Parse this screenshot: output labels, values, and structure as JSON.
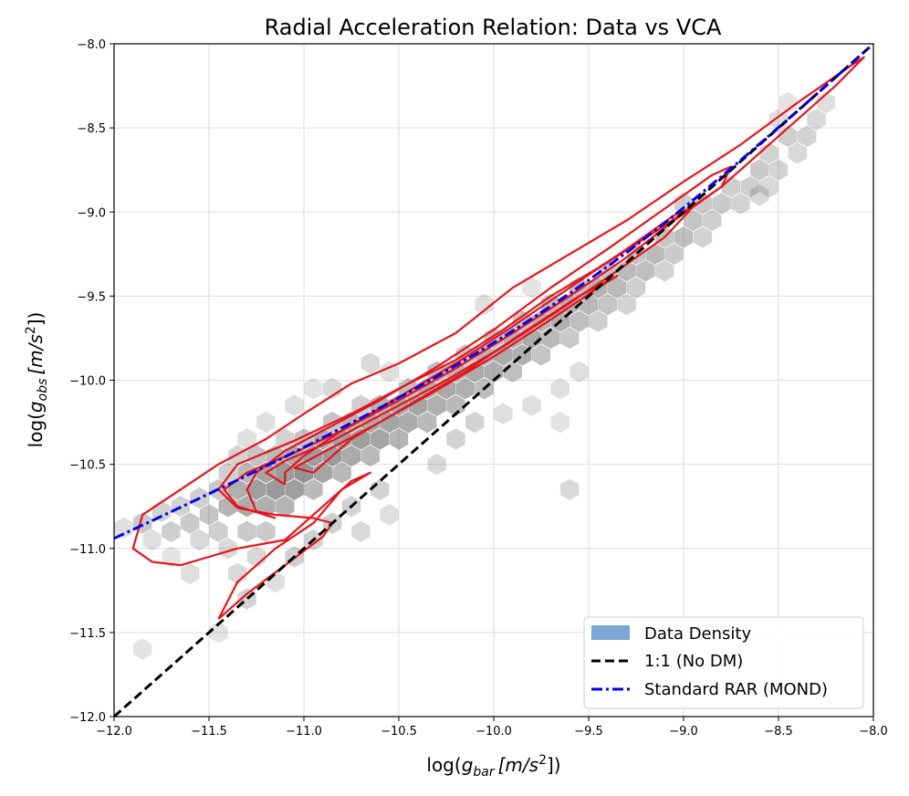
{
  "chart_data": {
    "type": "hexbin_with_contours",
    "title": "Radial Acceleration Relation: Data vs VCA",
    "xlabel": {
      "prefix": "log(",
      "var": "g",
      "sub": "bar",
      "unit": "[m/s",
      "sup": "2",
      "close": "])"
    },
    "ylabel": {
      "prefix": "log(",
      "var": "g",
      "sub": "obs",
      "unit": "[m/s",
      "sup": "2",
      "close": "])"
    },
    "xlim": [
      -12.0,
      -8.0
    ],
    "ylim": [
      -12.0,
      -8.0
    ],
    "xticks": [
      -12.0,
      -11.5,
      -11.0,
      -10.5,
      -10.0,
      -9.5,
      -9.0,
      -8.5,
      -8.0
    ],
    "yticks": [
      -12.0,
      -11.5,
      -11.0,
      -10.5,
      -10.0,
      -9.5,
      -9.0,
      -8.5,
      -8.0
    ],
    "xtick_labels": [
      "−12.0",
      "−11.5",
      "−11.0",
      "−10.5",
      "−10.0",
      "−9.5",
      "−9.0",
      "−8.5",
      "−8.0"
    ],
    "ytick_labels": [
      "−12.0",
      "−11.5",
      "−11.0",
      "−10.5",
      "−10.0",
      "−9.5",
      "−9.0",
      "−8.5",
      "−8.0"
    ],
    "grid": true,
    "legend_position": "bottom-right",
    "legend": [
      {
        "label": "Data Density",
        "kind": "patch",
        "color": "#7ba7d4"
      },
      {
        "label": "1:1 (No DM)",
        "kind": "line",
        "color": "#000000",
        "style": "dashed"
      },
      {
        "label": "Standard RAR (MOND)",
        "kind": "line",
        "color": "#0000ee",
        "style": "dashdot"
      }
    ],
    "colors": {
      "hex": "#6e6e6e",
      "contour": "#e8141b",
      "one_to_one": "#000000",
      "mond": "#0000ee"
    },
    "hexbins": [
      {
        "x": -11.95,
        "y": -10.88,
        "d": 0.2
      },
      {
        "x": -11.85,
        "y": -10.85,
        "d": 0.4
      },
      {
        "x": -11.8,
        "y": -10.95,
        "d": 0.2
      },
      {
        "x": -11.75,
        "y": -10.78,
        "d": 0.3
      },
      {
        "x": -11.7,
        "y": -10.9,
        "d": 0.35
      },
      {
        "x": -11.65,
        "y": -10.75,
        "d": 0.3
      },
      {
        "x": -11.6,
        "y": -10.85,
        "d": 0.4
      },
      {
        "x": -11.55,
        "y": -10.7,
        "d": 0.35
      },
      {
        "x": -11.55,
        "y": -10.95,
        "d": 0.25
      },
      {
        "x": -11.5,
        "y": -10.8,
        "d": 0.45
      },
      {
        "x": -11.45,
        "y": -10.65,
        "d": 0.4
      },
      {
        "x": -11.45,
        "y": -10.9,
        "d": 0.35
      },
      {
        "x": -11.4,
        "y": -10.55,
        "d": 0.35
      },
      {
        "x": -11.4,
        "y": -10.75,
        "d": 0.6
      },
      {
        "x": -11.4,
        "y": -11.0,
        "d": 0.25
      },
      {
        "x": -11.35,
        "y": -10.65,
        "d": 0.65
      },
      {
        "x": -11.35,
        "y": -10.45,
        "d": 0.3
      },
      {
        "x": -11.3,
        "y": -10.75,
        "d": 0.7
      },
      {
        "x": -11.3,
        "y": -10.55,
        "d": 0.55
      },
      {
        "x": -11.3,
        "y": -10.9,
        "d": 0.4
      },
      {
        "x": -11.25,
        "y": -10.65,
        "d": 0.8
      },
      {
        "x": -11.25,
        "y": -10.45,
        "d": 0.45
      },
      {
        "x": -11.2,
        "y": -10.55,
        "d": 0.75
      },
      {
        "x": -11.2,
        "y": -10.75,
        "d": 0.65
      },
      {
        "x": -11.2,
        "y": -10.9,
        "d": 0.4
      },
      {
        "x": -11.15,
        "y": -10.65,
        "d": 0.85
      },
      {
        "x": -11.15,
        "y": -10.45,
        "d": 0.55
      },
      {
        "x": -11.1,
        "y": -10.55,
        "d": 0.85
      },
      {
        "x": -11.1,
        "y": -10.75,
        "d": 0.6
      },
      {
        "x": -11.1,
        "y": -10.35,
        "d": 0.3
      },
      {
        "x": -11.05,
        "y": -10.65,
        "d": 0.8
      },
      {
        "x": -11.05,
        "y": -10.45,
        "d": 0.7
      },
      {
        "x": -11.0,
        "y": -10.55,
        "d": 0.9
      },
      {
        "x": -11.0,
        "y": -10.35,
        "d": 0.45
      },
      {
        "x": -10.95,
        "y": -10.45,
        "d": 0.8
      },
      {
        "x": -10.95,
        "y": -10.65,
        "d": 0.55
      },
      {
        "x": -10.9,
        "y": -10.35,
        "d": 0.65
      },
      {
        "x": -10.9,
        "y": -10.55,
        "d": 0.75
      },
      {
        "x": -10.85,
        "y": -10.45,
        "d": 0.85
      },
      {
        "x": -10.85,
        "y": -10.25,
        "d": 0.45
      },
      {
        "x": -10.8,
        "y": -10.35,
        "d": 0.8
      },
      {
        "x": -10.8,
        "y": -10.55,
        "d": 0.55
      },
      {
        "x": -10.75,
        "y": -10.45,
        "d": 0.7
      },
      {
        "x": -10.75,
        "y": -10.25,
        "d": 0.6
      },
      {
        "x": -10.7,
        "y": -10.35,
        "d": 0.8
      },
      {
        "x": -10.7,
        "y": -10.15,
        "d": 0.35
      },
      {
        "x": -10.65,
        "y": -10.25,
        "d": 0.7
      },
      {
        "x": -10.65,
        "y": -10.45,
        "d": 0.55
      },
      {
        "x": -10.6,
        "y": -10.15,
        "d": 0.6
      },
      {
        "x": -10.6,
        "y": -10.35,
        "d": 0.75
      },
      {
        "x": -10.55,
        "y": -10.25,
        "d": 0.75
      },
      {
        "x": -10.5,
        "y": -10.15,
        "d": 0.7
      },
      {
        "x": -10.5,
        "y": -10.35,
        "d": 0.6
      },
      {
        "x": -10.45,
        "y": -10.05,
        "d": 0.5
      },
      {
        "x": -10.45,
        "y": -10.25,
        "d": 0.7
      },
      {
        "x": -10.4,
        "y": -10.15,
        "d": 0.75
      },
      {
        "x": -10.35,
        "y": -10.05,
        "d": 0.65
      },
      {
        "x": -10.35,
        "y": -10.25,
        "d": 0.55
      },
      {
        "x": -10.3,
        "y": -9.95,
        "d": 0.5
      },
      {
        "x": -10.3,
        "y": -10.15,
        "d": 0.65
      },
      {
        "x": -10.25,
        "y": -10.05,
        "d": 0.7
      },
      {
        "x": -10.2,
        "y": -9.95,
        "d": 0.6
      },
      {
        "x": -10.2,
        "y": -10.15,
        "d": 0.55
      },
      {
        "x": -10.15,
        "y": -9.85,
        "d": 0.45
      },
      {
        "x": -10.15,
        "y": -10.05,
        "d": 0.65
      },
      {
        "x": -10.1,
        "y": -9.95,
        "d": 0.7
      },
      {
        "x": -10.05,
        "y": -9.85,
        "d": 0.6
      },
      {
        "x": -10.05,
        "y": -10.05,
        "d": 0.5
      },
      {
        "x": -10.0,
        "y": -9.75,
        "d": 0.45
      },
      {
        "x": -10.0,
        "y": -9.95,
        "d": 0.65
      },
      {
        "x": -9.95,
        "y": -9.85,
        "d": 0.7
      },
      {
        "x": -9.9,
        "y": -9.75,
        "d": 0.6
      },
      {
        "x": -9.9,
        "y": -9.95,
        "d": 0.5
      },
      {
        "x": -9.85,
        "y": -9.65,
        "d": 0.45
      },
      {
        "x": -9.85,
        "y": -9.85,
        "d": 0.65
      },
      {
        "x": -9.8,
        "y": -9.75,
        "d": 0.7
      },
      {
        "x": -9.75,
        "y": -9.65,
        "d": 0.6
      },
      {
        "x": -9.75,
        "y": -9.85,
        "d": 0.45
      },
      {
        "x": -9.7,
        "y": -9.55,
        "d": 0.5
      },
      {
        "x": -9.7,
        "y": -9.75,
        "d": 0.55
      },
      {
        "x": -9.65,
        "y": -9.65,
        "d": 0.65
      },
      {
        "x": -9.6,
        "y": -9.55,
        "d": 0.6
      },
      {
        "x": -9.6,
        "y": -9.75,
        "d": 0.4
      },
      {
        "x": -9.55,
        "y": -9.45,
        "d": 0.5
      },
      {
        "x": -9.55,
        "y": -9.65,
        "d": 0.5
      },
      {
        "x": -9.5,
        "y": -9.55,
        "d": 0.55
      },
      {
        "x": -9.45,
        "y": -9.45,
        "d": 0.6
      },
      {
        "x": -9.45,
        "y": -9.65,
        "d": 0.35
      },
      {
        "x": -9.4,
        "y": -9.35,
        "d": 0.45
      },
      {
        "x": -9.4,
        "y": -9.55,
        "d": 0.45
      },
      {
        "x": -9.35,
        "y": -9.45,
        "d": 0.55
      },
      {
        "x": -9.3,
        "y": -9.35,
        "d": 0.55
      },
      {
        "x": -9.3,
        "y": -9.55,
        "d": 0.3
      },
      {
        "x": -9.25,
        "y": -9.25,
        "d": 0.45
      },
      {
        "x": -9.25,
        "y": -9.45,
        "d": 0.35
      },
      {
        "x": -9.2,
        "y": -9.35,
        "d": 0.5
      },
      {
        "x": -9.15,
        "y": -9.25,
        "d": 0.55
      },
      {
        "x": -9.1,
        "y": -9.15,
        "d": 0.45
      },
      {
        "x": -9.1,
        "y": -9.35,
        "d": 0.3
      },
      {
        "x": -9.05,
        "y": -9.25,
        "d": 0.4
      },
      {
        "x": -9.0,
        "y": -9.15,
        "d": 0.5
      },
      {
        "x": -9.0,
        "y": -8.95,
        "d": 0.35
      },
      {
        "x": -8.95,
        "y": -9.05,
        "d": 0.45
      },
      {
        "x": -8.9,
        "y": -9.15,
        "d": 0.3
      },
      {
        "x": -8.9,
        "y": -8.95,
        "d": 0.4
      },
      {
        "x": -8.85,
        "y": -9.05,
        "d": 0.35
      },
      {
        "x": -8.8,
        "y": -8.95,
        "d": 0.4
      },
      {
        "x": -8.75,
        "y": -8.85,
        "d": 0.35
      },
      {
        "x": -8.7,
        "y": -8.95,
        "d": 0.3
      },
      {
        "x": -8.65,
        "y": -8.85,
        "d": 0.35
      },
      {
        "x": -8.6,
        "y": -8.75,
        "d": 0.4
      },
      {
        "x": -8.55,
        "y": -8.85,
        "d": 0.25
      },
      {
        "x": -8.55,
        "y": -8.65,
        "d": 0.3
      },
      {
        "x": -8.5,
        "y": -8.75,
        "d": 0.3
      },
      {
        "x": -8.45,
        "y": -8.55,
        "d": 0.35
      },
      {
        "x": -8.4,
        "y": -8.65,
        "d": 0.25
      },
      {
        "x": -8.35,
        "y": -8.55,
        "d": 0.3
      },
      {
        "x": -8.3,
        "y": -8.45,
        "d": 0.25
      },
      {
        "x": -8.25,
        "y": -8.35,
        "d": 0.2
      },
      {
        "x": -11.35,
        "y": -11.15,
        "d": 0.25
      },
      {
        "x": -11.3,
        "y": -11.3,
        "d": 0.3
      },
      {
        "x": -11.25,
        "y": -11.05,
        "d": 0.25
      },
      {
        "x": -11.15,
        "y": -11.2,
        "d": 0.2
      },
      {
        "x": -11.05,
        "y": -11.05,
        "d": 0.35
      },
      {
        "x": -10.95,
        "y": -10.95,
        "d": 0.3
      },
      {
        "x": -10.85,
        "y": -10.85,
        "d": 0.35
      },
      {
        "x": -10.75,
        "y": -10.75,
        "d": 0.3
      },
      {
        "x": -10.7,
        "y": -10.9,
        "d": 0.25
      },
      {
        "x": -10.6,
        "y": -10.65,
        "d": 0.3
      },
      {
        "x": -10.55,
        "y": -10.8,
        "d": 0.2
      },
      {
        "x": -11.45,
        "y": -11.5,
        "d": 0.15
      },
      {
        "x": -11.2,
        "y": -10.25,
        "d": 0.2
      },
      {
        "x": -11.05,
        "y": -10.15,
        "d": 0.2
      },
      {
        "x": -10.95,
        "y": -10.05,
        "d": 0.15
      },
      {
        "x": -10.55,
        "y": -9.95,
        "d": 0.2
      },
      {
        "x": -10.05,
        "y": -9.55,
        "d": 0.2
      },
      {
        "x": -9.8,
        "y": -9.45,
        "d": 0.15
      },
      {
        "x": -9.95,
        "y": -10.2,
        "d": 0.2
      },
      {
        "x": -9.8,
        "y": -10.15,
        "d": 0.2
      },
      {
        "x": -9.65,
        "y": -10.05,
        "d": 0.2
      },
      {
        "x": -9.65,
        "y": -10.25,
        "d": 0.15
      },
      {
        "x": -9.55,
        "y": -9.95,
        "d": 0.2
      },
      {
        "x": -9.6,
        "y": -10.65,
        "d": 0.25
      },
      {
        "x": -11.85,
        "y": -11.6,
        "d": 0.15
      },
      {
        "x": -11.7,
        "y": -11.05,
        "d": 0.15
      },
      {
        "x": -11.6,
        "y": -11.15,
        "d": 0.2
      },
      {
        "x": -10.3,
        "y": -10.5,
        "d": 0.25
      },
      {
        "x": -10.2,
        "y": -10.35,
        "d": 0.3
      },
      {
        "x": -10.1,
        "y": -10.25,
        "d": 0.3
      },
      {
        "x": -10.65,
        "y": -9.9,
        "d": 0.25
      },
      {
        "x": -10.85,
        "y": -10.05,
        "d": 0.25
      },
      {
        "x": -11.3,
        "y": -10.35,
        "d": 0.2
      },
      {
        "x": -8.5,
        "y": -8.45,
        "d": 0.2
      },
      {
        "x": -8.45,
        "y": -8.35,
        "d": 0.15
      },
      {
        "x": -8.6,
        "y": -8.9,
        "d": 0.25
      }
    ],
    "contours": [
      [
        [
          -11.45,
          -11.42
        ],
        [
          -11.3,
          -11.27
        ],
        [
          -11.1,
          -11.1
        ],
        [
          -10.9,
          -10.93
        ],
        [
          -10.85,
          -10.85
        ],
        [
          -10.95,
          -10.82
        ],
        [
          -11.15,
          -10.8
        ],
        [
          -11.35,
          -10.76
        ],
        [
          -11.45,
          -10.65
        ],
        [
          -11.35,
          -10.5
        ],
        [
          -11.05,
          -10.36
        ],
        [
          -10.75,
          -10.2
        ],
        [
          -10.5,
          -10.05
        ],
        [
          -10.2,
          -9.88
        ],
        [
          -9.95,
          -9.7
        ],
        [
          -9.7,
          -9.5
        ],
        [
          -9.4,
          -9.3
        ],
        [
          -9.1,
          -9.08
        ],
        [
          -8.8,
          -8.85
        ],
        [
          -8.5,
          -8.55
        ],
        [
          -8.2,
          -8.25
        ],
        [
          -8.05,
          -8.08
        ],
        [
          -8.12,
          -8.13
        ],
        [
          -8.4,
          -8.35
        ],
        [
          -8.7,
          -8.6
        ],
        [
          -9.0,
          -8.82
        ],
        [
          -9.3,
          -9.05
        ],
        [
          -9.6,
          -9.25
        ],
        [
          -9.9,
          -9.45
        ],
        [
          -10.2,
          -9.72
        ],
        [
          -10.5,
          -9.9
        ],
        [
          -10.75,
          -10.02
        ],
        [
          -11.0,
          -10.2
        ],
        [
          -11.2,
          -10.35
        ],
        [
          -11.45,
          -10.5
        ],
        [
          -11.65,
          -10.65
        ],
        [
          -11.85,
          -10.8
        ],
        [
          -11.9,
          -11.0
        ],
        [
          -11.8,
          -11.08
        ],
        [
          -11.65,
          -11.1
        ],
        [
          -11.5,
          -11.05
        ],
        [
          -11.35,
          -11.0
        ],
        [
          -11.1,
          -10.95
        ],
        [
          -10.9,
          -10.75
        ],
        [
          -10.75,
          -10.6
        ],
        [
          -10.65,
          -10.55
        ],
        [
          -10.8,
          -10.65
        ],
        [
          -10.95,
          -10.85
        ],
        [
          -11.15,
          -11.0
        ],
        [
          -11.35,
          -11.2
        ],
        [
          -11.45,
          -11.42
        ]
      ],
      [
        [
          -11.15,
          -10.82
        ],
        [
          -11.35,
          -10.75
        ],
        [
          -11.42,
          -10.65
        ],
        [
          -11.3,
          -10.55
        ],
        [
          -11.05,
          -10.43
        ],
        [
          -10.8,
          -10.3
        ],
        [
          -10.5,
          -10.12
        ],
        [
          -10.2,
          -9.93
        ],
        [
          -9.9,
          -9.72
        ],
        [
          -9.6,
          -9.5
        ],
        [
          -9.3,
          -9.27
        ],
        [
          -9.05,
          -9.05
        ],
        [
          -8.8,
          -8.85
        ],
        [
          -8.75,
          -8.73
        ],
        [
          -8.85,
          -8.78
        ],
        [
          -9.1,
          -8.98
        ],
        [
          -9.4,
          -9.22
        ],
        [
          -9.7,
          -9.45
        ],
        [
          -10.0,
          -9.7
        ],
        [
          -10.3,
          -9.92
        ],
        [
          -10.6,
          -10.12
        ],
        [
          -10.85,
          -10.27
        ],
        [
          -11.1,
          -10.42
        ],
        [
          -11.25,
          -10.55
        ],
        [
          -11.3,
          -10.65
        ],
        [
          -11.25,
          -10.78
        ],
        [
          -11.15,
          -10.82
        ]
      ],
      [
        [
          -11.1,
          -10.62
        ],
        [
          -11.2,
          -10.55
        ],
        [
          -11.1,
          -10.48
        ],
        [
          -10.85,
          -10.36
        ],
        [
          -10.55,
          -10.18
        ],
        [
          -10.25,
          -10.0
        ],
        [
          -9.95,
          -9.8
        ],
        [
          -9.65,
          -9.58
        ],
        [
          -9.35,
          -9.35
        ],
        [
          -9.1,
          -9.15
        ],
        [
          -8.95,
          -8.97
        ],
        [
          -9.05,
          -9.02
        ],
        [
          -9.3,
          -9.22
        ],
        [
          -9.6,
          -9.45
        ],
        [
          -9.9,
          -9.68
        ],
        [
          -10.2,
          -9.9
        ],
        [
          -10.5,
          -10.1
        ],
        [
          -10.8,
          -10.3
        ],
        [
          -11.0,
          -10.45
        ],
        [
          -11.1,
          -10.55
        ],
        [
          -11.1,
          -10.62
        ]
      ],
      [
        [
          -10.95,
          -10.55
        ],
        [
          -11.05,
          -10.52
        ],
        [
          -10.9,
          -10.43
        ],
        [
          -10.6,
          -10.25
        ],
        [
          -10.3,
          -10.06
        ],
        [
          -10.0,
          -9.86
        ],
        [
          -9.7,
          -9.64
        ],
        [
          -9.45,
          -9.45
        ],
        [
          -9.35,
          -9.38
        ],
        [
          -9.55,
          -9.5
        ],
        [
          -9.85,
          -9.72
        ],
        [
          -10.15,
          -9.95
        ],
        [
          -10.45,
          -10.15
        ],
        [
          -10.75,
          -10.35
        ],
        [
          -10.95,
          -10.55
        ]
      ]
    ],
    "lines": {
      "one_to_one": {
        "x": [
          -12.0,
          -8.0
        ],
        "y": [
          -12.0,
          -8.0
        ]
      },
      "mond_a0_log": -9.92
    }
  }
}
